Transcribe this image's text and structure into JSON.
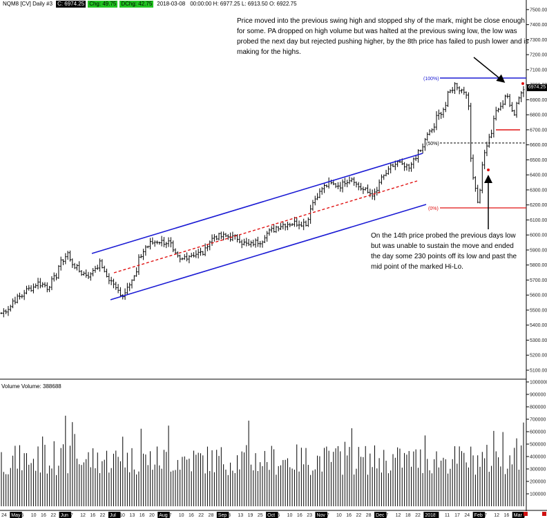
{
  "header": {
    "symbol": "NQM8 [CV]",
    "interval": "Daily",
    "window_id": "#3",
    "close": "C: 6974.25",
    "change": "Chg: 49.75",
    "pct_change": "DChg: 42.75",
    "date": "2018-03-08",
    "hlo": "00:00:00 H: 6977.25  L: 6913.50  O: 6922.75"
  },
  "last_price_tag": "6974.25",
  "volume_title": "Volume  Volume: 388688",
  "annotations": {
    "top": "Price moved into the previous swing high and stopped shy of the mark, might be close enough for some.  PA dropped on high volume but was halted at the previous swing low, the low was probed the next day but rejected pushing higher, by the 8th price has failed to push lower and is making for the highs.",
    "bottom": "On the 14th price probed the previous days low but was unable to sustain the move and ended the day some 230 points off its low and past the mid point of the marked Hi-Lo."
  },
  "fib_labels": [
    "(100%)",
    "(50%)",
    "(0%)"
  ],
  "colors": {
    "channel": "#1a1ad4",
    "midline": "#e01010",
    "fib_high": "#1a1ad4",
    "fib_low": "#e01010",
    "fib_mid": "#000000",
    "bars": "#000000",
    "volume": "#000000"
  },
  "chart_data": {
    "type": "ohlc",
    "price_axis": {
      "ticks": [
        "7500.00",
        "7400.00",
        "7300.00",
        "7200.00",
        "7100.00",
        "7000.00",
        "6900.00",
        "6800.00",
        "6700.00",
        "6600.00",
        "6500.00",
        "6400.00",
        "6300.00",
        "6200.00",
        "6100.00",
        "6000.00",
        "5900.00",
        "5800.00",
        "5700.00",
        "5600.00",
        "5500.00",
        "5400.00",
        "5300.00",
        "5200.00",
        "5100.00"
      ],
      "range": [
        5100,
        7550
      ]
    },
    "volume_axis": {
      "ticks": [
        "1000000",
        "900000",
        "800000",
        "700000",
        "600000",
        "500000",
        "400000",
        "300000",
        "200000",
        "100000"
      ],
      "range": [
        0,
        1000000
      ]
    },
    "x_labels": [
      "24",
      "May",
      "5",
      "10",
      "16",
      "22",
      "Jun",
      "7",
      "12",
      "16",
      "22",
      "Jul",
      "10",
      "13",
      "16",
      "20",
      "Aug",
      "7",
      "10",
      "16",
      "22",
      "28",
      "Sep",
      "8",
      "13",
      "19",
      "25",
      "Oct",
      "5",
      "10",
      "16",
      "23",
      "Nov",
      "7",
      "10",
      "16",
      "22",
      "28",
      "Dec",
      "7",
      "12",
      "18",
      "22",
      "2018",
      "8",
      "11",
      "17",
      "24",
      "Feb",
      "7",
      "12",
      "16",
      "Mar",
      "7"
    ],
    "month_labels": [
      "May",
      "Jun",
      "Jul",
      "Aug",
      "Sep",
      "Oct",
      "Nov",
      "Dec",
      "2018",
      "Feb",
      "Mar"
    ],
    "fib_levels": {
      "high": 7055,
      "mid": 6610,
      "low": 6165
    },
    "levels": {
      "swing_low_line": 6695
    },
    "series_anchor": [
      {
        "d": "2017-04-24",
        "c": 5480
      },
      {
        "d": "2017-05-01",
        "c": 5560
      },
      {
        "d": "2017-05-10",
        "c": 5640
      },
      {
        "d": "2017-05-16",
        "c": 5680
      },
      {
        "d": "2017-05-22",
        "c": 5650
      },
      {
        "d": "2017-05-26",
        "c": 5730
      },
      {
        "d": "2017-06-02",
        "c": 5880
      },
      {
        "d": "2017-06-09",
        "c": 5760
      },
      {
        "d": "2017-06-16",
        "c": 5730
      },
      {
        "d": "2017-06-22",
        "c": 5810
      },
      {
        "d": "2017-06-29",
        "c": 5690
      },
      {
        "d": "2017-07-06",
        "c": 5600
      },
      {
        "d": "2017-07-13",
        "c": 5720
      },
      {
        "d": "2017-07-20",
        "c": 5920
      },
      {
        "d": "2017-07-27",
        "c": 5960
      },
      {
        "d": "2017-08-03",
        "c": 5950
      },
      {
        "d": "2017-08-10",
        "c": 5830
      },
      {
        "d": "2017-08-17",
        "c": 5870
      },
      {
        "d": "2017-08-24",
        "c": 5880
      },
      {
        "d": "2017-08-31",
        "c": 5990
      },
      {
        "d": "2017-09-07",
        "c": 5990
      },
      {
        "d": "2017-09-14",
        "c": 5980
      },
      {
        "d": "2017-09-21",
        "c": 5930
      },
      {
        "d": "2017-09-28",
        "c": 5960
      },
      {
        "d": "2017-10-05",
        "c": 6030
      },
      {
        "d": "2017-10-12",
        "c": 6070
      },
      {
        "d": "2017-10-19",
        "c": 6080
      },
      {
        "d": "2017-10-26",
        "c": 6080
      },
      {
        "d": "2017-11-02",
        "c": 6270
      },
      {
        "d": "2017-11-09",
        "c": 6340
      },
      {
        "d": "2017-11-16",
        "c": 6330
      },
      {
        "d": "2017-11-23",
        "c": 6380
      },
      {
        "d": "2017-11-30",
        "c": 6300
      },
      {
        "d": "2017-12-07",
        "c": 6270
      },
      {
        "d": "2017-12-14",
        "c": 6410
      },
      {
        "d": "2017-12-21",
        "c": 6480
      },
      {
        "d": "2017-12-28",
        "c": 6440
      },
      {
        "d": "2018-01-04",
        "c": 6560
      },
      {
        "d": "2018-01-11",
        "c": 6700
      },
      {
        "d": "2018-01-18",
        "c": 6840
      },
      {
        "d": "2018-01-25",
        "c": 7000
      },
      {
        "d": "2018-02-01",
        "c": 6950
      },
      {
        "d": "2018-02-06",
        "c": 6400
      },
      {
        "d": "2018-02-08",
        "c": 6230
      },
      {
        "d": "2018-02-14",
        "c": 6600
      },
      {
        "d": "2018-02-21",
        "c": 6850
      },
      {
        "d": "2018-02-27",
        "c": 6920
      },
      {
        "d": "2018-03-02",
        "c": 6800
      },
      {
        "d": "2018-03-08",
        "c": 6974
      }
    ]
  }
}
